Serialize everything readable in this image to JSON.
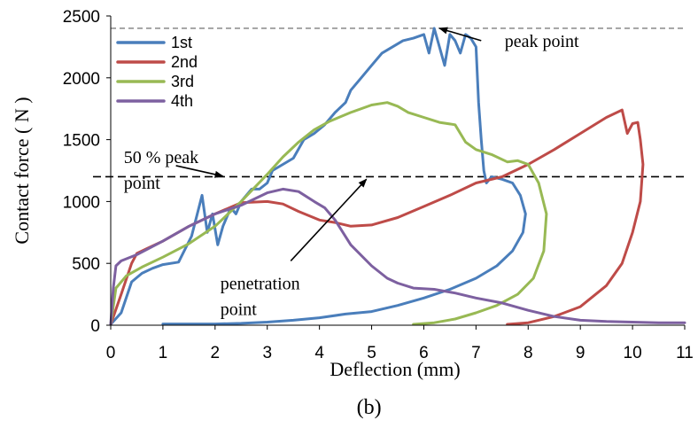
{
  "chart_data": {
    "type": "line",
    "title": "",
    "xlabel": "Deflection (mm)",
    "ylabel": "Contact force ( N )",
    "caption": "(b)",
    "xlim": [
      0,
      11
    ],
    "ylim": [
      0,
      2500
    ],
    "x_ticks": [
      0,
      1,
      2,
      3,
      4,
      5,
      6,
      7,
      8,
      9,
      10,
      11
    ],
    "y_ticks": [
      0,
      500,
      1000,
      1500,
      2000,
      2500
    ],
    "grid": false,
    "legend_position": "top-left",
    "reference_lines": [
      {
        "y": 2400,
        "style": "dashed",
        "color": "#7f7f7f"
      },
      {
        "y": 1200,
        "style": "dashed",
        "color": "#000000"
      }
    ],
    "annotations": [
      {
        "text": "peak point",
        "text_x": 7.55,
        "text_y": 2250,
        "arrow_from": [
          7.1,
          2300
        ],
        "arrow_to": [
          6.3,
          2400
        ]
      },
      {
        "text_line1": "50 % peak",
        "text_line2": "point",
        "text_x": 0.25,
        "text_y": 1310,
        "arrow_from": [
          1.25,
          1290
        ],
        "arrow_to": [
          2.15,
          1205
        ]
      },
      {
        "text_line1": "penetration",
        "text_line2": "point",
        "text_x": 2.1,
        "text_y": 290,
        "arrow_from": [
          3.45,
          520
        ],
        "arrow_to": [
          4.9,
          1180
        ]
      }
    ],
    "series": [
      {
        "name": "1st",
        "color": "#4a7ebb",
        "x": [
          0,
          0.2,
          0.4,
          0.6,
          0.8,
          1.0,
          1.3,
          1.55,
          1.75,
          1.85,
          1.95,
          2.05,
          2.15,
          2.3,
          2.4,
          2.5,
          2.6,
          2.7,
          2.85,
          3.0,
          3.1,
          3.3,
          3.5,
          3.7,
          3.9,
          4.1,
          4.3,
          4.5,
          4.6,
          4.8,
          5.0,
          5.2,
          5.4,
          5.6,
          5.8,
          6.0,
          6.1,
          6.2,
          6.3,
          6.4,
          6.5,
          6.6,
          6.7,
          6.8,
          6.9,
          7.0,
          7.05,
          7.1,
          7.15,
          7.2,
          7.3,
          7.5,
          7.7,
          7.85,
          7.95,
          7.9,
          7.7,
          7.4,
          7.0,
          6.5,
          6.0,
          5.5,
          5.0,
          4.5,
          4.0,
          3.5,
          3.0,
          2.5,
          2.0,
          1.5,
          1.0
        ],
        "y": [
          0,
          100,
          350,
          420,
          460,
          490,
          510,
          720,
          1050,
          750,
          900,
          650,
          800,
          950,
          900,
          1000,
          1050,
          1100,
          1100,
          1150,
          1250,
          1300,
          1350,
          1500,
          1550,
          1620,
          1720,
          1800,
          1900,
          2000,
          2100,
          2200,
          2250,
          2300,
          2320,
          2350,
          2200,
          2400,
          2250,
          2100,
          2350,
          2300,
          2200,
          2350,
          2320,
          2250,
          1800,
          1500,
          1250,
          1150,
          1200,
          1180,
          1150,
          1050,
          900,
          750,
          600,
          480,
          380,
          290,
          220,
          160,
          110,
          90,
          60,
          40,
          25,
          15,
          10,
          10,
          10
        ]
      },
      {
        "name": "2nd",
        "color": "#be4b48",
        "x": [
          0,
          0.2,
          0.4,
          0.5,
          0.7,
          1.0,
          1.5,
          2.0,
          2.5,
          3.0,
          3.3,
          3.6,
          4.0,
          4.3,
          4.6,
          5.0,
          5.5,
          6.0,
          6.5,
          7.0,
          7.5,
          8.0,
          8.5,
          9.0,
          9.5,
          9.8,
          9.9,
          10.0,
          10.1,
          10.15,
          10.2,
          10.15,
          10.0,
          9.8,
          9.5,
          9.0,
          8.5,
          8.0,
          7.6
        ],
        "y": [
          0,
          250,
          500,
          580,
          620,
          680,
          800,
          900,
          990,
          1000,
          980,
          920,
          850,
          830,
          800,
          810,
          870,
          960,
          1050,
          1150,
          1200,
          1300,
          1420,
          1550,
          1680,
          1740,
          1550,
          1630,
          1640,
          1500,
          1300,
          1000,
          750,
          500,
          320,
          150,
          70,
          20,
          0
        ]
      },
      {
        "name": "3rd",
        "color": "#98b954",
        "x": [
          0,
          0.1,
          0.3,
          0.6,
          1.0,
          1.5,
          2.0,
          2.5,
          3.0,
          3.3,
          3.6,
          3.9,
          4.2,
          4.6,
          5.0,
          5.3,
          5.5,
          5.7,
          6.0,
          6.3,
          6.6,
          6.8,
          7.0,
          7.3,
          7.6,
          7.8,
          8.0,
          8.2,
          8.35,
          8.3,
          8.1,
          7.8,
          7.4,
          7.0,
          6.6,
          6.2,
          5.8
        ],
        "y": [
          0,
          300,
          400,
          470,
          550,
          660,
          800,
          1000,
          1220,
          1360,
          1480,
          1580,
          1650,
          1720,
          1780,
          1800,
          1770,
          1720,
          1680,
          1640,
          1620,
          1480,
          1420,
          1380,
          1320,
          1330,
          1300,
          1150,
          900,
          600,
          380,
          250,
          160,
          100,
          50,
          20,
          0
        ]
      },
      {
        "name": "4th",
        "color": "#7d60a0",
        "x": [
          0,
          0.05,
          0.1,
          0.2,
          0.5,
          1.0,
          1.5,
          2.0,
          2.5,
          3.0,
          3.3,
          3.6,
          3.9,
          4.1,
          4.3,
          4.6,
          5.0,
          5.3,
          5.5,
          5.8,
          6.2,
          6.6,
          7.0,
          7.5,
          8.0,
          8.5,
          9.0,
          9.5,
          10.0,
          10.5,
          11.0
        ],
        "y": [
          0,
          300,
          480,
          520,
          570,
          680,
          800,
          900,
          970,
          1070,
          1100,
          1080,
          1000,
          950,
          850,
          650,
          480,
          380,
          340,
          300,
          290,
          260,
          220,
          180,
          120,
          70,
          40,
          30,
          25,
          20,
          20
        ]
      }
    ]
  }
}
